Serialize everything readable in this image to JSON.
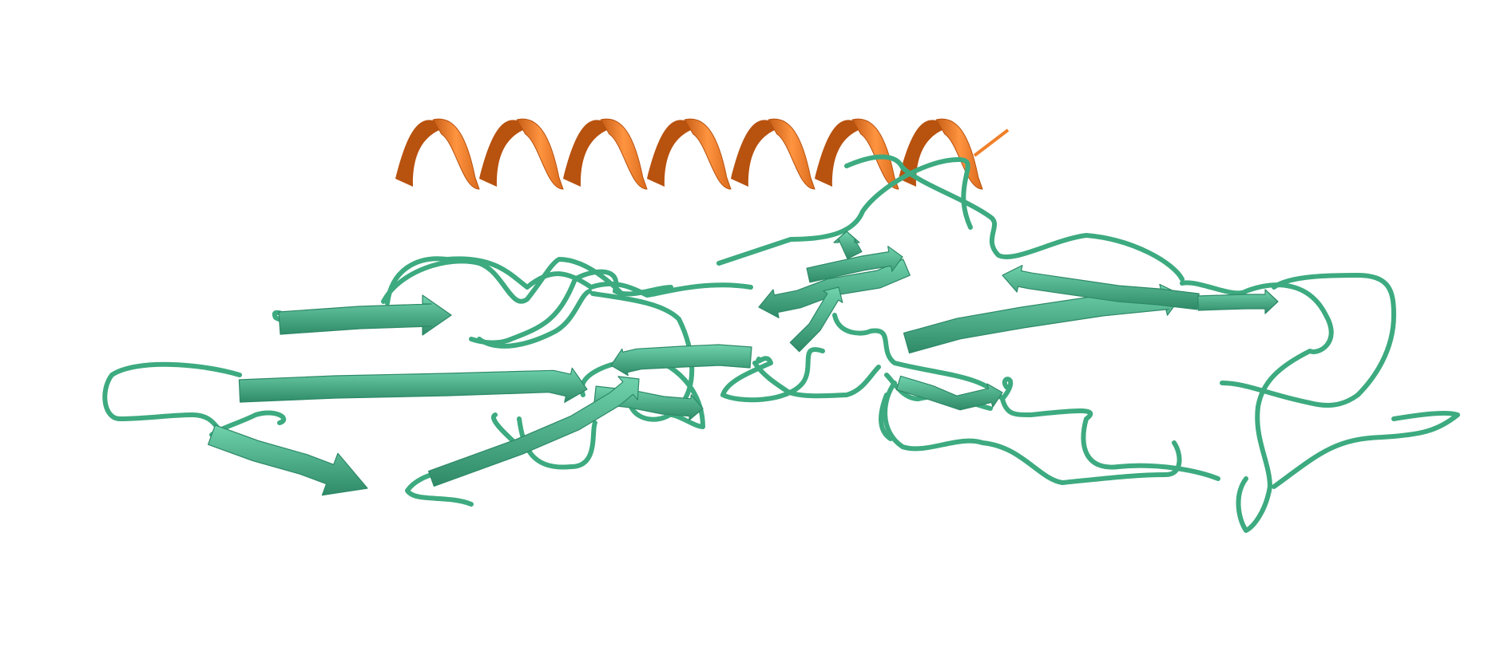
{
  "colors": {
    "background": "#ffffff",
    "helix": "#f0802a",
    "helix_dark": "#b8520f",
    "helix_light": "#ff9a45",
    "strand": "#55c29a",
    "strand_dark": "#2e8a68",
    "coil": "#3daa80"
  }
}
